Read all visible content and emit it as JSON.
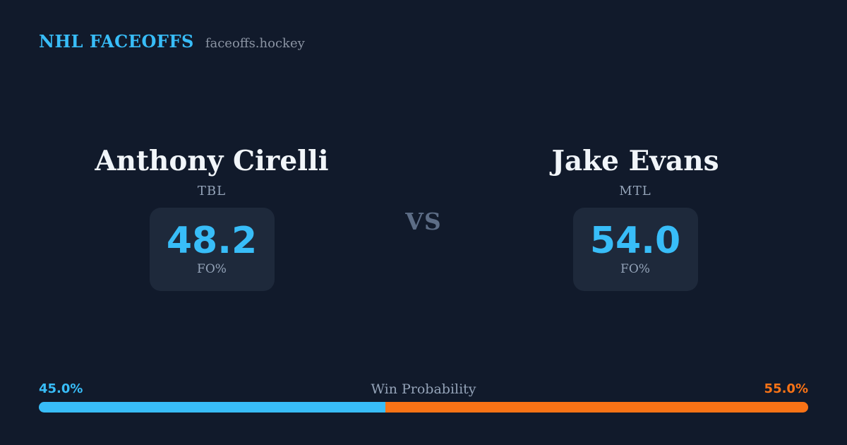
{
  "header": {
    "brand": "NHL FACEOFFS",
    "site_domain": "faceoffs.hockey"
  },
  "vs_label": "VS",
  "players": {
    "left": {
      "name": "Anthony Cirelli",
      "team": "TBL",
      "stat_value": "48.2",
      "stat_label": "FO%"
    },
    "right": {
      "name": "Jake Evans",
      "team": "MTL",
      "stat_value": "54.0",
      "stat_label": "FO%"
    }
  },
  "win_probability": {
    "title": "Win Probability",
    "left_label": "45.0%",
    "right_label": "55.0%",
    "left_value": 45.0,
    "right_value": 55.0,
    "left_color": "#38bdf8",
    "right_color": "#f97316"
  },
  "colors": {
    "background": "#111a2b",
    "card": "#1e293b",
    "accent_blue": "#38bdf8",
    "accent_orange": "#f97316",
    "text_primary": "#f1f5f9",
    "text_muted": "#94a3b8"
  }
}
